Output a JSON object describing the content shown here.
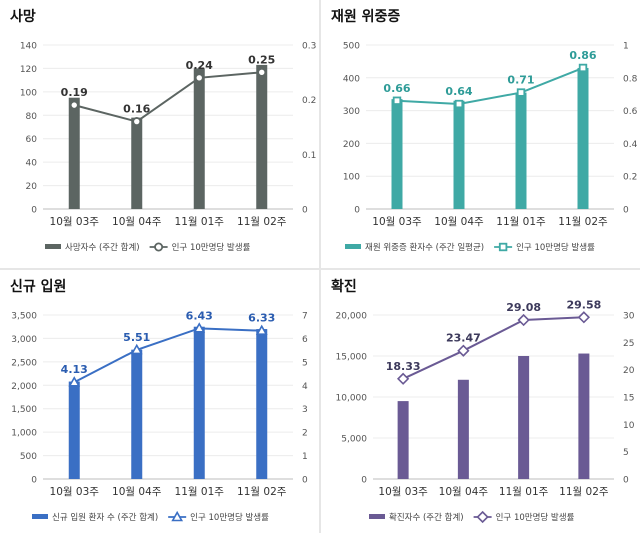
{
  "chart_data": [
    {
      "type": "bar",
      "title": "사망",
      "categories": [
        "10월 03주",
        "10월 04주",
        "11월 01주",
        "11월 02주"
      ],
      "series": [
        {
          "name": "사망자수 (주간 합계)",
          "type": "bar",
          "axis": "left",
          "values": [
            95,
            78,
            120,
            123
          ]
        },
        {
          "name": "인구 10만명당 발생률",
          "type": "line",
          "axis": "right",
          "marker": "circle",
          "values": [
            0.19,
            0.16,
            0.24,
            0.25
          ],
          "labels": [
            "0.19",
            "0.16",
            "0.24",
            "0.25"
          ]
        }
      ],
      "ylim_left": [
        0,
        140
      ],
      "yticks_left": [
        0,
        20,
        40,
        60,
        80,
        100,
        120,
        140
      ],
      "ylim_right": [
        0,
        0.3
      ],
      "yticks_right": [
        0,
        0.1,
        0.2,
        0.3
      ],
      "ytick_labels_right": [
        "0",
        "0.1",
        "0.2",
        "0.3"
      ],
      "bar_color": "#5c6562",
      "line_color": "#5c6562",
      "label_color": "#333333",
      "grid": true,
      "legend": "bottom"
    },
    {
      "type": "bar",
      "title": "재원 위중증",
      "categories": [
        "10월 03주",
        "10월 04주",
        "11월 01주",
        "11월 02주"
      ],
      "series": [
        {
          "name": "재원 위중증 환자수 (주간 일평균)",
          "type": "bar",
          "axis": "left",
          "values": [
            335,
            330,
            355,
            430
          ]
        },
        {
          "name": "인구 10만명당 발생률",
          "type": "line",
          "axis": "right",
          "marker": "square",
          "values": [
            0.66,
            0.64,
            0.71,
            0.86
          ],
          "labels": [
            "0.66",
            "0.64",
            "0.71",
            "0.86"
          ]
        }
      ],
      "ylim_left": [
        0,
        500
      ],
      "yticks_left": [
        0,
        100,
        200,
        300,
        400,
        500
      ],
      "ylim_right": [
        0,
        1
      ],
      "yticks_right": [
        0,
        0.2,
        0.4,
        0.6,
        0.8,
        1
      ],
      "ytick_labels_right": [
        "0",
        "0.2",
        "0.4",
        "0.6",
        "0.8",
        "1"
      ],
      "bar_color": "#3fa9a5",
      "line_color": "#3fa9a5",
      "label_color": "#2f9c98",
      "grid": true,
      "legend": "bottom"
    },
    {
      "type": "bar",
      "title": "신규 입원",
      "categories": [
        "10월 03주",
        "10월 04주",
        "11월 01주",
        "11월 02주"
      ],
      "series": [
        {
          "name": "신규 입원 환자 수 (주간 합계)",
          "type": "bar",
          "axis": "left",
          "values": [
            2080,
            2760,
            3250,
            3200
          ]
        },
        {
          "name": "인구 10만명당 발생률",
          "type": "line",
          "axis": "right",
          "marker": "triangle",
          "values": [
            4.13,
            5.51,
            6.43,
            6.33
          ],
          "labels": [
            "4.13",
            "5.51",
            "6.43",
            "6.33"
          ]
        }
      ],
      "ylim_left": [
        0,
        3500
      ],
      "yticks_left": [
        0,
        500,
        1000,
        1500,
        2000,
        2500,
        3000,
        3500
      ],
      "ytick_labels_left": [
        "0",
        "500",
        "1,000",
        "1,500",
        "2,000",
        "2,500",
        "3,000",
        "3,500"
      ],
      "ylim_right": [
        0,
        7
      ],
      "yticks_right": [
        0,
        1,
        2,
        3,
        4,
        5,
        6,
        7
      ],
      "ytick_labels_right": [
        "0",
        "1",
        "2",
        "3",
        "4",
        "5",
        "6",
        "7"
      ],
      "bar_color": "#3a6fc4",
      "line_color": "#3a6fc4",
      "label_color": "#2a5cb0",
      "grid": true,
      "legend": "bottom"
    },
    {
      "type": "bar",
      "title": "확진",
      "categories": [
        "10월 03주",
        "10월 04주",
        "11월 01주",
        "11월 02주"
      ],
      "series": [
        {
          "name": "확진자수 (주간 합계)",
          "type": "bar",
          "axis": "left",
          "values": [
            9500,
            12100,
            15000,
            15300
          ]
        },
        {
          "name": "인구 10만명당 발생률",
          "type": "line",
          "axis": "right",
          "marker": "diamond",
          "values": [
            18.33,
            23.47,
            29.08,
            29.58
          ],
          "labels": [
            "18.33",
            "23.47",
            "29.08",
            "29.58"
          ]
        }
      ],
      "ylim_left": [
        0,
        20000
      ],
      "yticks_left": [
        0,
        5000,
        10000,
        15000,
        20000
      ],
      "ytick_labels_left": [
        "0",
        "5,000",
        "10,000",
        "15,000",
        "20,000"
      ],
      "ylim_right": [
        0,
        30
      ],
      "yticks_right": [
        0,
        5,
        10,
        15,
        20,
        25,
        30
      ],
      "ytick_labels_right": [
        "0",
        "5",
        "10",
        "15",
        "20",
        "25",
        "30"
      ],
      "bar_color": "#6a5a94",
      "line_color": "#6a5a94",
      "label_color": "#3d3a5c",
      "grid": true,
      "legend": "bottom"
    }
  ]
}
